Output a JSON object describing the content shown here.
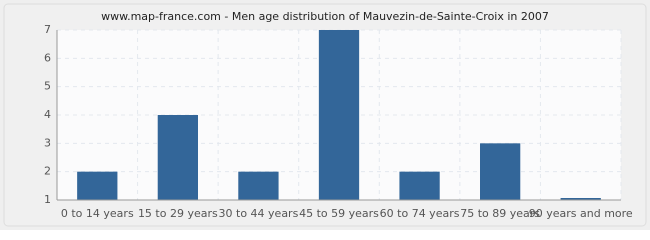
{
  "chart_data": {
    "type": "bar",
    "title": "www.map-france.com - Men age distribution of Mauvezin-de-Sainte-Croix in 2007",
    "categories": [
      "0 to 14 years",
      "15 to 29 years",
      "30 to 44 years",
      "45 to 59 years",
      "60 to 74 years",
      "75 to 89 years",
      "90 years and more"
    ],
    "values": [
      2,
      4,
      2,
      7,
      2,
      3,
      1
    ],
    "color": "#336699",
    "ylim": [
      1,
      7
    ],
    "yticks": [
      1,
      2,
      3,
      4,
      5,
      6,
      7
    ],
    "grid": true
  }
}
